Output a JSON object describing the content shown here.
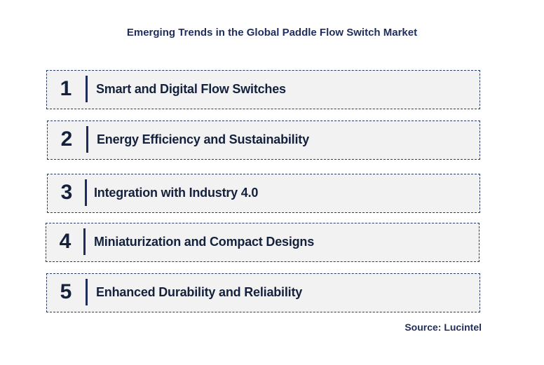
{
  "title": "Emerging Trends in the Global Paddle Flow Switch Market",
  "trends": [
    {
      "number": "1",
      "label": "Smart and Digital Flow Switches"
    },
    {
      "number": "2",
      "label": "Energy Efficiency and Sustainability"
    },
    {
      "number": "3",
      "label": "Integration with Industry 4.0"
    },
    {
      "number": "4",
      "label": "Miniaturization and Compact Designs"
    },
    {
      "number": "5",
      "label": "Enhanced Durability and Reliability"
    }
  ],
  "source": "Source: Lucintel",
  "colors": {
    "text": "#14213d",
    "accent": "#1f2d5c",
    "box_background": "#f2f2f2"
  }
}
